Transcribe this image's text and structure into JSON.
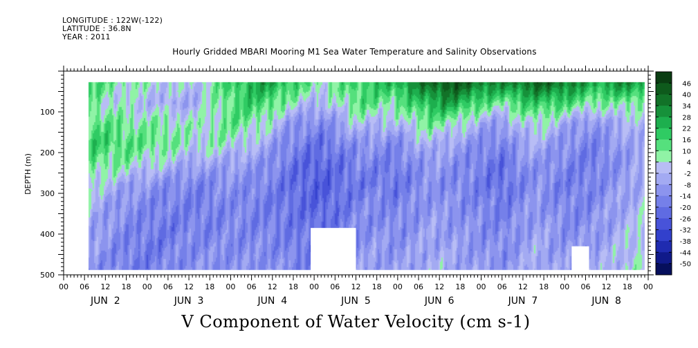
{
  "header": {
    "longitude": "LONGITUDE : 122W(-122)",
    "latitude": "LATITUDE : 36.8N",
    "year": "YEAR : 2011",
    "title": "Hourly Gridded MBARI Mooring M1 Sea Water Temperature and Salinity Observations"
  },
  "chart_data": {
    "type": "heatmap",
    "title": "Hourly Gridded MBARI Mooring M1 Sea Water Temperature and Salinity Observations",
    "xlabel": "V Component of Water Velocity (cm s-1)",
    "ylabel": "DEPTH (m)",
    "ylim": [
      500,
      0
    ],
    "y_ticks": [
      "100",
      "200",
      "300",
      "400",
      "500"
    ],
    "x_hour_labels": [
      "00",
      "06",
      "12",
      "18",
      "00",
      "06",
      "12",
      "18",
      "00",
      "06",
      "12",
      "18",
      "00",
      "06",
      "12",
      "18",
      "00",
      "06",
      "12",
      "18",
      "00",
      "06",
      "12",
      "18",
      "00",
      "06",
      "12",
      "18",
      "00"
    ],
    "x_day_labels": [
      "JUN 2",
      "JUN 3",
      "JUN 4",
      "JUN 5",
      "JUN 6",
      "JUN 7",
      "JUN 8"
    ],
    "data_start_hour": 7,
    "data_end_hour": 167,
    "depth_range": [
      25,
      487
    ],
    "colorbar": {
      "levels": [
        "46",
        "40",
        "34",
        "28",
        "22",
        "16",
        "10",
        "4",
        "-2",
        "-8",
        "-14",
        "-20",
        "-26",
        "-32",
        "-38",
        "-44",
        "-50"
      ],
      "colors": [
        "#0a3d12",
        "#0e5a1c",
        "#127228",
        "#16913a",
        "#1daf4e",
        "#2fcb63",
        "#55e07d",
        "#90f3a6",
        "#b8bdf5",
        "#a3aaf2",
        "#8c94ee",
        "#7580e9",
        "#5f6be2",
        "#4853d9",
        "#3240cc",
        "#1f2bb0",
        "#101a8a",
        "#060f5c"
      ],
      "min": -50,
      "max": 52
    },
    "blank_bottom_regions": [
      {
        "start_hour": 71,
        "end_hour": 84,
        "top_depth_m": 385
      },
      {
        "start_hour": 146,
        "end_hour": 151,
        "top_depth_m": 430
      }
    ],
    "rows": [
      {
        "depth": 25,
        "values": [
          18,
          14,
          10,
          8,
          6,
          4,
          2,
          12,
          20,
          25,
          30,
          22,
          16,
          10,
          14,
          20,
          22,
          26,
          32,
          40,
          46,
          42,
          36,
          34,
          38,
          42,
          40,
          34,
          28,
          30,
          34,
          28
        ]
      },
      {
        "depth": 75,
        "values": [
          12,
          8,
          4,
          2,
          0,
          -2,
          0,
          8,
          16,
          20,
          18,
          10,
          4,
          0,
          8,
          16,
          14,
          12,
          18,
          26,
          30,
          24,
          16,
          12,
          18,
          22,
          20,
          16,
          12,
          10,
          14,
          8
        ]
      },
      {
        "depth": 125,
        "values": [
          16,
          14,
          12,
          10,
          10,
          8,
          6,
          10,
          14,
          12,
          6,
          -4,
          -8,
          -10,
          -4,
          4,
          2,
          0,
          8,
          12,
          10,
          4,
          -2,
          -6,
          4,
          8,
          2,
          -4,
          -8,
          -2,
          0,
          2
        ]
      },
      {
        "depth": 175,
        "values": [
          20,
          18,
          16,
          14,
          14,
          10,
          6,
          8,
          6,
          2,
          -2,
          -10,
          -14,
          -16,
          -12,
          -6,
          -8,
          -10,
          -4,
          2,
          -2,
          -6,
          -10,
          -12,
          -4,
          0,
          -6,
          -10,
          -12,
          -8,
          -4,
          0
        ]
      },
      {
        "depth": 225,
        "values": [
          14,
          12,
          10,
          6,
          4,
          0,
          -4,
          -2,
          -4,
          -6,
          -8,
          -14,
          -18,
          -20,
          -16,
          -12,
          -12,
          -14,
          -10,
          -6,
          -8,
          -10,
          -14,
          -16,
          -10,
          -6,
          -10,
          -12,
          -14,
          -10,
          -6,
          -2
        ]
      },
      {
        "depth": 275,
        "values": [
          6,
          2,
          -2,
          -6,
          -8,
          -10,
          -12,
          -10,
          -8,
          -10,
          -12,
          -16,
          -20,
          -22,
          -18,
          -14,
          -14,
          -16,
          -12,
          -8,
          -10,
          -12,
          -14,
          -18,
          -12,
          -8,
          -12,
          -14,
          -12,
          -8,
          -4,
          0
        ]
      },
      {
        "depth": 325,
        "values": [
          2,
          -4,
          -8,
          -10,
          -12,
          -12,
          -14,
          -12,
          -10,
          -12,
          -14,
          -16,
          -18,
          -20,
          -16,
          -12,
          -10,
          -12,
          -10,
          -6,
          -8,
          -10,
          -12,
          -14,
          -10,
          -6,
          -10,
          -12,
          -10,
          -6,
          -2,
          2
        ]
      },
      {
        "depth": 375,
        "values": [
          -2,
          -6,
          -10,
          -12,
          -14,
          -14,
          -12,
          -12,
          -10,
          -12,
          -12,
          -14,
          -16,
          -18,
          -14,
          -10,
          -8,
          -10,
          -8,
          -4,
          -6,
          -8,
          -10,
          -12,
          -8,
          -4,
          -8,
          -10,
          -8,
          -4,
          0,
          4
        ]
      },
      {
        "depth": 425,
        "values": [
          -4,
          -8,
          -12,
          -14,
          -14,
          -12,
          -10,
          -10,
          -10,
          -10,
          -10,
          -12,
          -14,
          -16,
          -12,
          -8,
          -6,
          -8,
          -6,
          -2,
          -4,
          -6,
          -8,
          -10,
          -6,
          -2,
          -6,
          -8,
          -6,
          -2,
          2,
          6
        ]
      },
      {
        "depth": 475,
        "values": [
          -6,
          -10,
          -12,
          -14,
          -12,
          -10,
          -8,
          -8,
          -8,
          -8,
          -8,
          -10,
          -12,
          -14,
          -10,
          -6,
          -4,
          -6,
          -4,
          0,
          -2,
          -4,
          -6,
          -8,
          -4,
          0,
          -4,
          -6,
          -4,
          0,
          4,
          8
        ]
      }
    ]
  }
}
